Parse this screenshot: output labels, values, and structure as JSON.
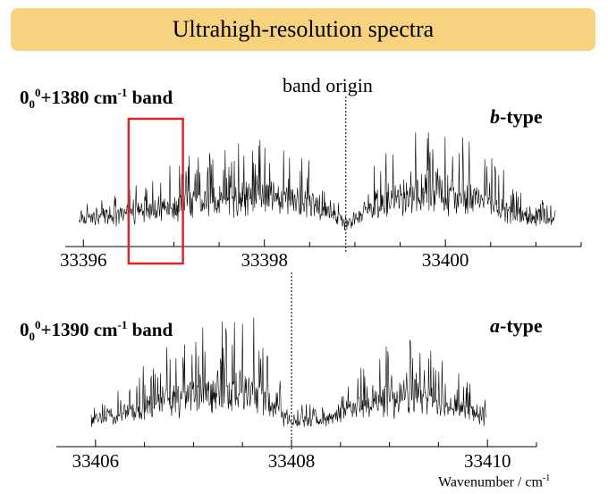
{
  "header": {
    "title": "Ultrahigh-resolution spectra"
  },
  "panels": {
    "top": {
      "band_prefix": "0",
      "band_sub": "0",
      "band_sup": "0",
      "band_suffix": "+1380 cm",
      "band_unit_sup": "-1",
      "band_word": " band",
      "type_italic": "b",
      "type_suffix": "-type"
    },
    "bottom": {
      "band_prefix": "0",
      "band_sub": "0",
      "band_sup": "0",
      "band_suffix": "+1390 cm",
      "band_unit_sup": "-1",
      "band_word": " band",
      "type_italic": "a",
      "type_suffix": "-type"
    },
    "origin_label": "band origin"
  },
  "xlabel": {
    "text": "Wavenumber / cm",
    "sup": "-1"
  },
  "colors": {
    "title_bg": "#f7d27f",
    "highlight": "#d62828",
    "trace": "#000000"
  },
  "chart_data": [
    {
      "type": "line",
      "name": "00^0+1380 cm-1 band",
      "spectrum_type": "b-type",
      "xlim": [
        33395.8,
        33401.5
      ],
      "xticks": [
        33396,
        33398,
        33400
      ],
      "tick_labels": [
        "33396",
        "33398",
        "33400"
      ],
      "band_origin_x": 33398.9,
      "highlight_x_range": [
        33396.5,
        33397.1
      ],
      "envelope": {
        "x": [
          33395.8,
          33396.3,
          33397.0,
          33397.5,
          33398.0,
          33398.5,
          33398.9,
          33399.3,
          33399.9,
          33400.4,
          33400.9,
          33401.5
        ],
        "intensity": [
          0.15,
          0.22,
          0.42,
          0.55,
          0.62,
          0.45,
          0.05,
          0.48,
          0.72,
          0.52,
          0.18,
          0.12
        ]
      }
    },
    {
      "type": "line",
      "name": "00^0+1390 cm-1 band",
      "spectrum_type": "a-type",
      "xlim": [
        33405.6,
        33410.5
      ],
      "xticks": [
        33406,
        33408,
        33410
      ],
      "tick_labels": [
        "33406",
        "33408",
        "33410"
      ],
      "band_origin_x": 33408.0,
      "envelope": {
        "x": [
          33405.6,
          33406.1,
          33406.6,
          33407.1,
          33407.6,
          33408.0,
          33408.4,
          33408.8,
          33409.3,
          33409.8,
          33410.1
        ],
        "intensity": [
          0.1,
          0.18,
          0.5,
          0.75,
          0.85,
          0.12,
          0.18,
          0.55,
          0.7,
          0.4,
          0.1
        ]
      }
    }
  ]
}
